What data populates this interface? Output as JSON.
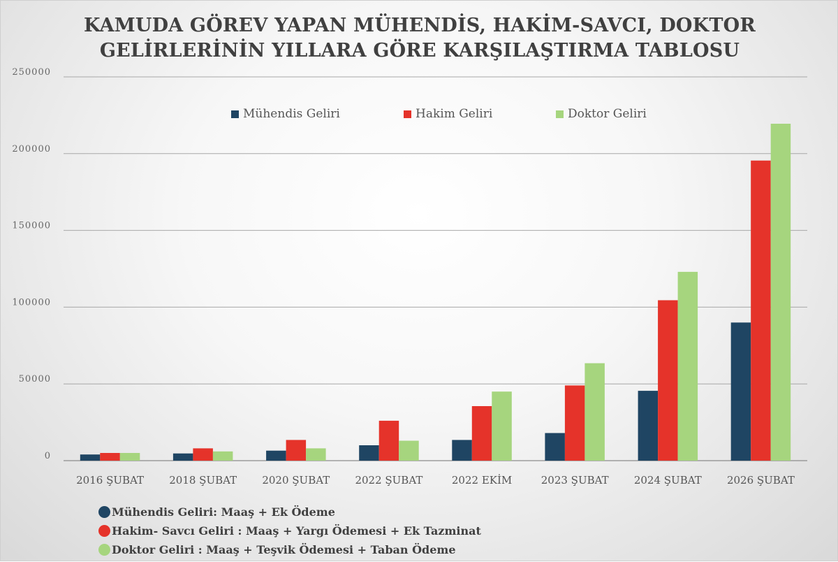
{
  "title_lines": [
    "KAMUDA GÖREV YAPAN MÜHENDİS, HAKİM-SAVCI, DOKTOR",
    "GELİRLERİNİN YILLARA GÖRE KARŞILAŞTIRMA TABLOSU"
  ],
  "chart_data": {
    "type": "bar",
    "title": "KAMUDA GÖREV YAPAN MÜHENDİS, HAKİM-SAVCI, DOKTOR GELİRLERİNİN YILLARA GÖRE KARŞILAŞTIRMA TABLOSU",
    "categories": [
      "2016 ŞUBAT",
      "2018 ŞUBAT",
      "2020 ŞUBAT",
      "2022 ŞUBAT",
      "2022 EKİM",
      "2023 ŞUBAT",
      "2024 ŞUBAT",
      "2026 ŞUBAT"
    ],
    "series": [
      {
        "name": "Mühendis Geliri",
        "color": "#1f4563",
        "values": [
          4000,
          4700,
          6500,
          10000,
          13500,
          18000,
          45500,
          90000
        ]
      },
      {
        "name": "Hakim Geliri",
        "color": "#e5332a",
        "values": [
          5000,
          8000,
          13500,
          26000,
          35500,
          49000,
          104500,
          195500
        ]
      },
      {
        "name": "Doktor Geliri",
        "color": "#a6d57e",
        "values": [
          5000,
          6000,
          8000,
          13000,
          45000,
          63500,
          123000,
          219500
        ]
      }
    ],
    "y_ticks": [
      "0",
      "50000",
      "100000",
      "150000",
      "200000",
      "250000"
    ],
    "ylim": [
      0,
      250000
    ],
    "xlabel": "",
    "ylabel": "",
    "grid": true,
    "legend_position": "top"
  },
  "notes": [
    {
      "text": "Mühendis Geliri: Maaş + Ek Ödeme",
      "color": "#1f4563"
    },
    {
      "text": "Hakim- Savcı Geliri : Maaş + Yargı Ödemesi + Ek Tazminat",
      "color": "#e5332a"
    },
    {
      "text": "Doktor Geliri : Maaş + Teşvik Ödemesi + Taban  Ödeme",
      "color": "#a6d57e"
    }
  ]
}
